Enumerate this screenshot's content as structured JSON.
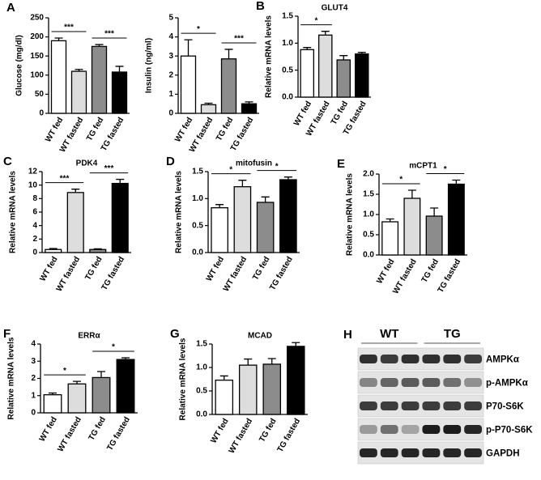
{
  "chart_data": [
    {
      "type": "bar",
      "panel": "A",
      "ylabel": "Glucose (mg/dl)",
      "categories": [
        "WT fed",
        "WT fasted",
        "TG fed",
        "TG fasted"
      ],
      "colors": [
        "#ffffff",
        "#dddddd",
        "#8c8c8c",
        "#000000"
      ],
      "values": [
        190,
        110,
        175,
        108
      ],
      "errors": [
        7,
        5,
        5,
        15
      ],
      "ylim": [
        0,
        250
      ],
      "yticks": [
        0,
        50,
        100,
        150,
        200,
        250
      ],
      "annotations": [
        {
          "text": "***",
          "span": [
            0,
            1
          ]
        },
        {
          "text": "***",
          "span": [
            2,
            3
          ]
        }
      ]
    },
    {
      "type": "bar",
      "ylabel": "Insulin (ng/ml)",
      "categories": [
        "WT fed",
        "WT fasted",
        "TG fed",
        "TG fasted"
      ],
      "colors": [
        "#ffffff",
        "#dddddd",
        "#8c8c8c",
        "#000000"
      ],
      "values": [
        3.0,
        0.45,
        2.85,
        0.5
      ],
      "errors": [
        0.85,
        0.08,
        0.5,
        0.1
      ],
      "ylim": [
        0,
        5
      ],
      "yticks": [
        0,
        1,
        2,
        3,
        4,
        5
      ],
      "annotations": [
        {
          "text": "*",
          "span": [
            0,
            1
          ]
        },
        {
          "text": "***",
          "span": [
            2,
            3
          ]
        }
      ]
    },
    {
      "type": "bar",
      "panel": "B",
      "title": "GLUT4",
      "ylabel": "Relative mRNA levels",
      "categories": [
        "WT fed",
        "WT fasted",
        "TG fed",
        "TG fasted"
      ],
      "colors": [
        "#ffffff",
        "#dddddd",
        "#8c8c8c",
        "#000000"
      ],
      "values": [
        0.88,
        1.15,
        0.69,
        0.8
      ],
      "errors": [
        0.04,
        0.07,
        0.08,
        0.03
      ],
      "ylim": [
        0,
        1.5
      ],
      "yticks": [
        {
          "value": 0,
          "label": "0.0"
        },
        0.5,
        {
          "value": 1,
          "label": "1.0"
        },
        1.5
      ],
      "annotations": [
        {
          "text": "*",
          "span": [
            0,
            1
          ]
        }
      ]
    },
    {
      "type": "bar",
      "panel": "C",
      "title": "PDK4",
      "ylabel": "Relative mRNA levels",
      "categories": [
        "WT fed",
        "WT fasted",
        "TG fed",
        "TG fasted"
      ],
      "colors": [
        "#ffffff",
        "#dddddd",
        "#8c8c8c",
        "#000000"
      ],
      "values": [
        0.45,
        8.9,
        0.45,
        10.25
      ],
      "errors": [
        0.15,
        0.5,
        0.1,
        0.6
      ],
      "ylim": [
        0,
        12
      ],
      "yticks": [
        0,
        2,
        4,
        6,
        8,
        10,
        12
      ],
      "annotations": [
        {
          "text": "***",
          "span": [
            0,
            1
          ]
        },
        {
          "text": "***",
          "span": [
            2,
            3
          ]
        }
      ]
    },
    {
      "type": "bar",
      "panel": "D",
      "title": "mitofusin",
      "ylabel": "Relative mRNA levels",
      "categories": [
        "WT fed",
        "WT fasted",
        "TG fed",
        "TG fasted"
      ],
      "colors": [
        "#ffffff",
        "#dddddd",
        "#8c8c8c",
        "#000000"
      ],
      "values": [
        0.83,
        1.22,
        0.93,
        1.35
      ],
      "errors": [
        0.06,
        0.12,
        0.1,
        0.05
      ],
      "ylim": [
        0,
        1.5
      ],
      "yticks": [
        {
          "value": 0,
          "label": "0.0"
        },
        0.5,
        {
          "value": 1,
          "label": "1.0"
        },
        1.5
      ],
      "annotations": [
        {
          "text": "*",
          "span": [
            0,
            1
          ]
        },
        {
          "text": "*",
          "span": [
            2,
            3
          ]
        }
      ]
    },
    {
      "type": "bar",
      "panel": "E",
      "title": "mCPT1",
      "ylabel": "Relative mRNA levels",
      "categories": [
        "WT fed",
        "WT fasted",
        "TG fed",
        "TG fasted"
      ],
      "colors": [
        "#ffffff",
        "#dddddd",
        "#8c8c8c",
        "#000000"
      ],
      "values": [
        0.82,
        1.4,
        0.96,
        1.75
      ],
      "errors": [
        0.07,
        0.2,
        0.2,
        0.1
      ],
      "ylim": [
        0,
        2
      ],
      "yticks": [
        {
          "value": 0,
          "label": "0.0"
        },
        0.5,
        {
          "value": 1,
          "label": "1.0"
        },
        1.5,
        {
          "value": 2,
          "label": "2.0"
        }
      ],
      "annotations": [
        {
          "text": "*",
          "span": [
            0,
            1
          ]
        },
        {
          "text": "*",
          "span": [
            2,
            3
          ]
        }
      ]
    },
    {
      "type": "bar",
      "panel": "F",
      "title": "ERRα",
      "ylabel": "Relative mRNA levels",
      "categories": [
        "WT fed",
        "WT fasted",
        "TG fed",
        "TG fasted"
      ],
      "colors": [
        "#ffffff",
        "#dddddd",
        "#8c8c8c",
        "#000000"
      ],
      "values": [
        1.05,
        1.68,
        2.05,
        3.1
      ],
      "errors": [
        0.1,
        0.15,
        0.35,
        0.1
      ],
      "ylim": [
        0,
        4
      ],
      "yticks": [
        0,
        1,
        2,
        3,
        4
      ],
      "annotations": [
        {
          "text": "*",
          "span": [
            0,
            1
          ]
        },
        {
          "text": "*",
          "span": [
            2,
            3
          ]
        }
      ]
    },
    {
      "type": "bar",
      "panel": "G",
      "title": "MCAD",
      "ylabel": "Relative mRNA levels",
      "categories": [
        "WT fed",
        "WT fasted",
        "TG fed",
        "TG fasted"
      ],
      "colors": [
        "#ffffff",
        "#dddddd",
        "#8c8c8c",
        "#000000"
      ],
      "values": [
        0.73,
        1.05,
        1.07,
        1.45
      ],
      "errors": [
        0.09,
        0.13,
        0.12,
        0.08
      ],
      "ylim": [
        0,
        1.5
      ],
      "yticks": [
        {
          "value": 0,
          "label": "0.0"
        },
        0.5,
        {
          "value": 1,
          "label": "1.0"
        },
        1.5
      ]
    }
  ],
  "blot": {
    "panel": "H",
    "groups": [
      "WT",
      "TG"
    ],
    "rows": [
      "AMPKα",
      "p-AMPKα",
      "P70-S6K",
      "p-P70-S6K",
      "GAPDH"
    ]
  }
}
